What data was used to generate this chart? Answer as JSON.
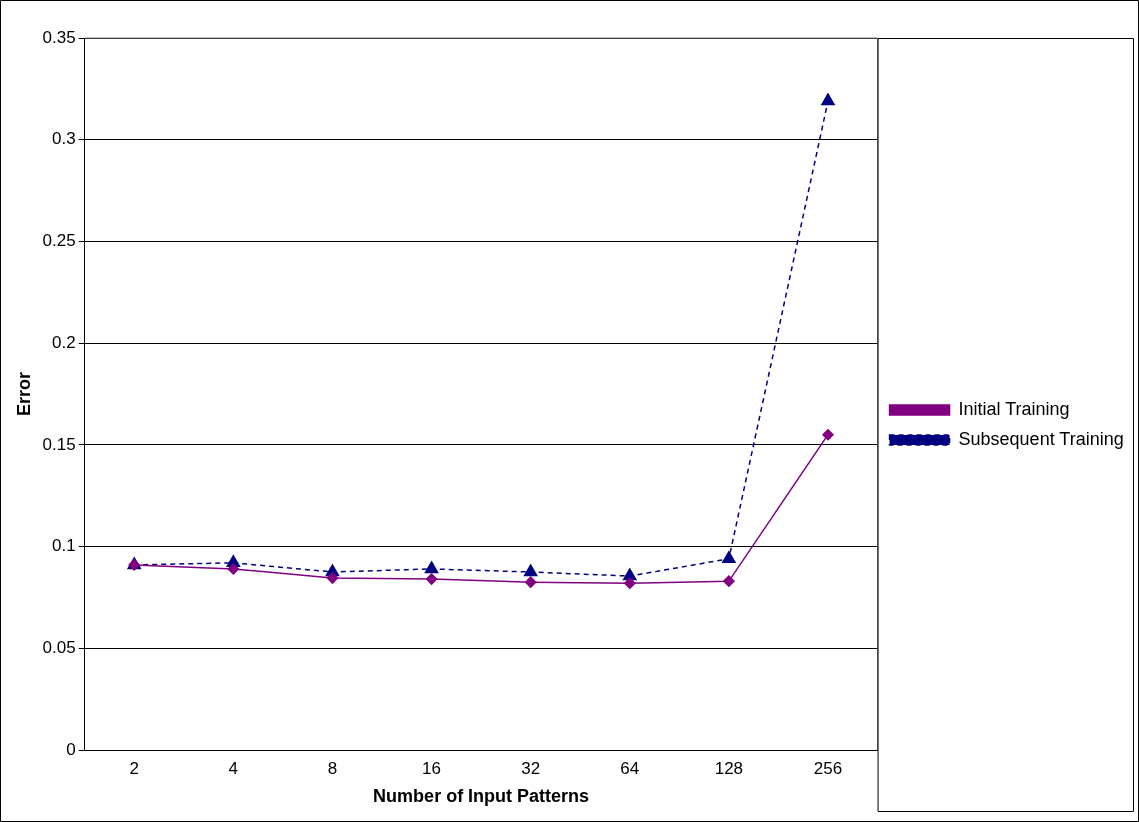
{
  "chart_data": {
    "type": "line",
    "xlabel": "Number of Input Patterns",
    "ylabel": "Error",
    "categories": [
      "2",
      "4",
      "8",
      "16",
      "32",
      "64",
      "128",
      "256"
    ],
    "series": [
      {
        "name": "Initial Training",
        "color": "#800080",
        "marker": "diamond",
        "line_style": "solid",
        "values": [
          0.091,
          0.089,
          0.0845,
          0.084,
          0.0825,
          0.082,
          0.083,
          0.155
        ]
      },
      {
        "name": "Subsequent Training",
        "color": "#000080",
        "marker": "triangle",
        "line_style": "dashed",
        "values": [
          0.091,
          0.092,
          0.0875,
          0.089,
          0.0875,
          0.0855,
          0.094,
          0.319
        ]
      }
    ],
    "ylim": [
      0,
      0.35
    ],
    "yticks": [
      0,
      0.05,
      0.1,
      0.15,
      0.2,
      0.25,
      0.3,
      0.35
    ],
    "grid": "y",
    "legend": "right"
  }
}
